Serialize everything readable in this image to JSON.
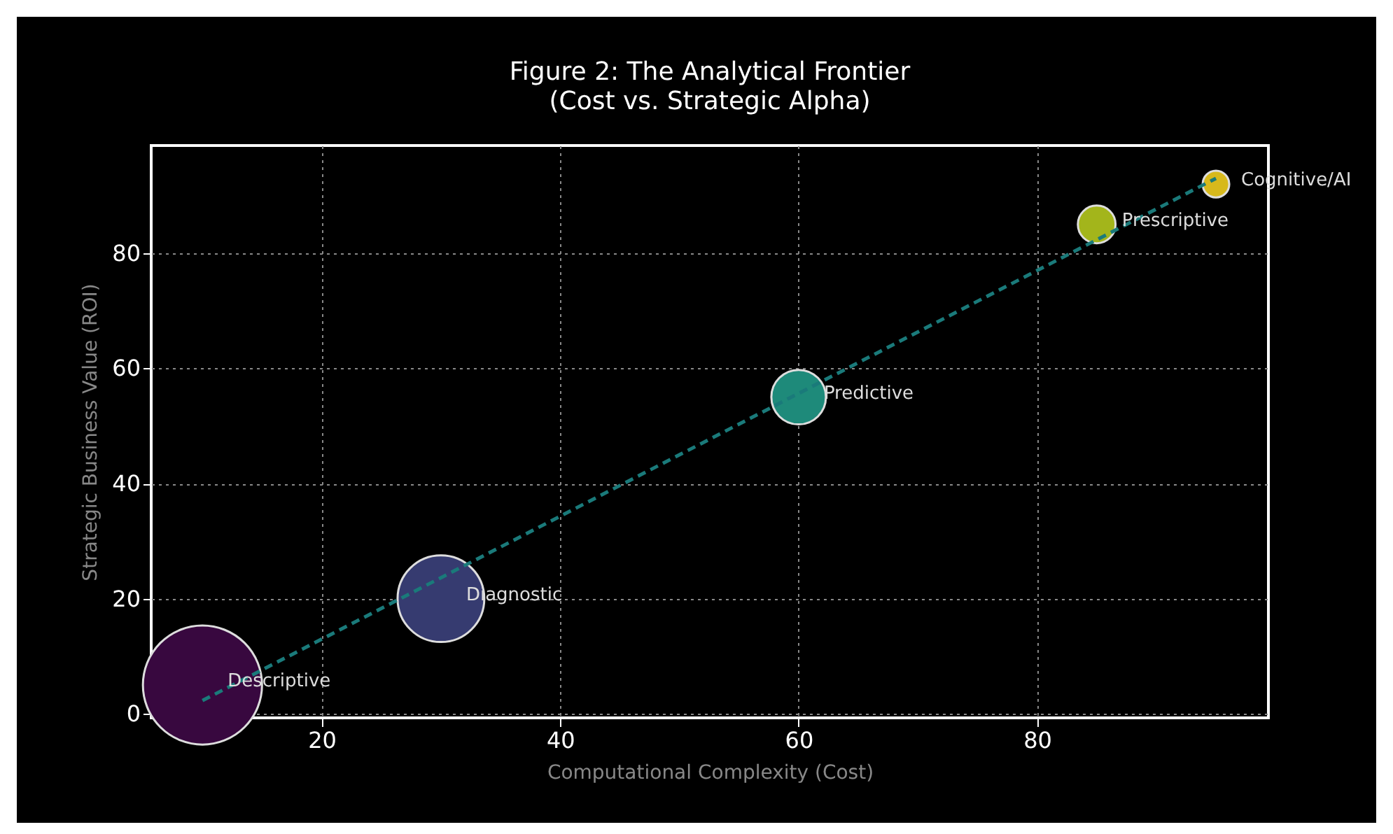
{
  "chart_data": {
    "type": "bubble",
    "title": "Figure 2: The Analytical Frontier",
    "subtitle": "(Cost vs. Strategic Alpha)",
    "xlabel": "Computational Complexity (Cost)",
    "ylabel": "Strategic Business Value (ROI)",
    "series": [
      {
        "x": [
          10,
          30,
          60,
          85,
          95
        ],
        "values": [
          5,
          20,
          55,
          85,
          92
        ],
        "sizes": [
          1,
          0.53,
          0.21,
          0.1,
          0.05
        ],
        "colors": [
          "#38083f",
          "#363b70",
          "#1e8a7a",
          "#a3b51b",
          "#d7b91c"
        ]
      },
      {
        "type": "line",
        "x": [
          10,
          95
        ],
        "values": [
          2.3,
          93.0
        ],
        "color": "#1a7a7a",
        "line_style": "dashed",
        "marker": "none"
      }
    ],
    "annotations": [
      {
        "text": "Descriptive",
        "x": 10,
        "y": 5
      },
      {
        "text": "Diagnostic",
        "x": 30,
        "y": 20
      },
      {
        "text": "Predictive",
        "x": 60,
        "y": 55
      },
      {
        "text": "Prescriptive",
        "x": 85,
        "y": 85
      },
      {
        "text": "Cognitive/AI",
        "x": 95,
        "y": 92
      }
    ],
    "xlim": [
      5.7,
      99.4
    ],
    "ylim": [
      -0.7,
      98.7
    ],
    "xticks": [
      20,
      40,
      60,
      80
    ],
    "yticks": [
      0,
      20,
      40,
      60,
      80
    ],
    "grid": true,
    "legend": false,
    "marker": "circle"
  }
}
